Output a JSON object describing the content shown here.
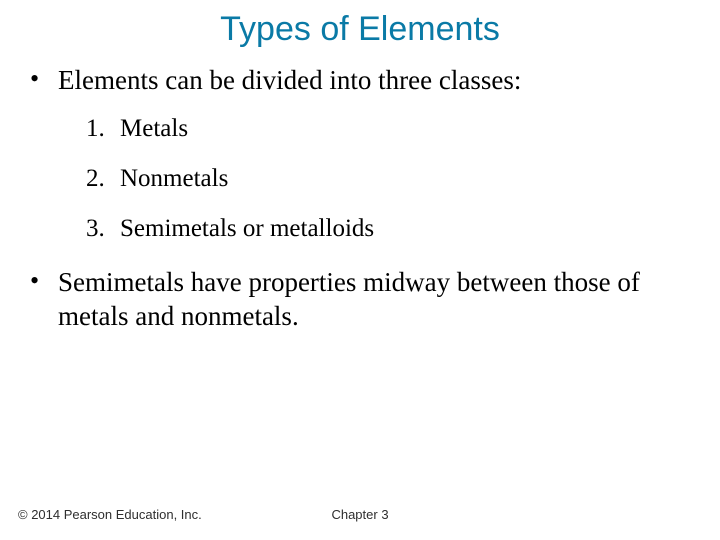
{
  "colors": {
    "title": "#0a7aa6",
    "body": "#000000",
    "footer": "#2e2e2e",
    "background": "#ffffff"
  },
  "typography": {
    "title_font": "Arial",
    "title_size_pt": 26,
    "body_font": "Times New Roman",
    "body_size_pt": 20,
    "list_size_pt": 19,
    "footer_font": "Arial",
    "footer_size_pt": 10
  },
  "title": "Types of Elements",
  "bullets": [
    {
      "text": "Elements can be divided into three classes:"
    }
  ],
  "numbered": [
    {
      "n": "1.",
      "text": "Metals"
    },
    {
      "n": "2.",
      "text": "Nonmetals"
    },
    {
      "n": "3.",
      "text": "Semimetals or metalloids"
    }
  ],
  "bullets2": [
    {
      "text": "Semimetals have properties midway between those of metals and nonmetals."
    }
  ],
  "footer": {
    "left": "© 2014 Pearson Education, Inc.",
    "center": "Chapter 3"
  }
}
